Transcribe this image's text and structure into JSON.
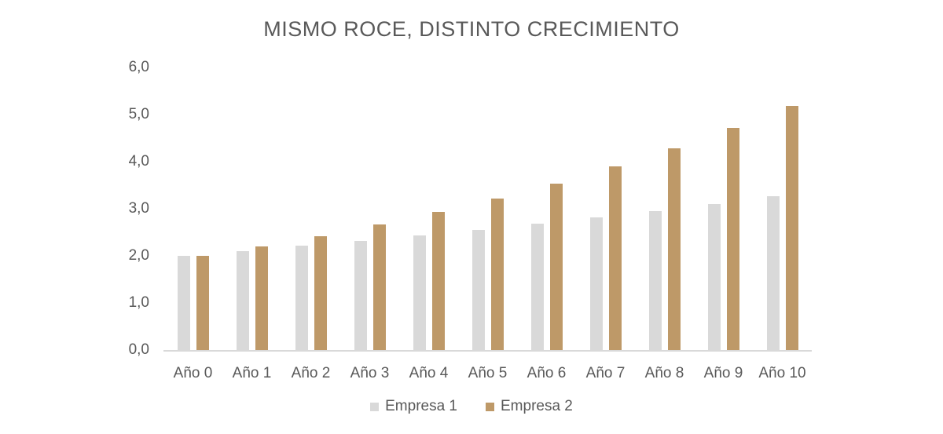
{
  "chart_data": {
    "type": "bar",
    "title": "MISMO ROCE, DISTINTO CRECIMIENTO",
    "categories": [
      "Año 0",
      "Año 1",
      "Año 2",
      "Año 3",
      "Año 4",
      "Año 5",
      "Año 6",
      "Año 7",
      "Año 8",
      "Año 9",
      "Año 10"
    ],
    "series": [
      {
        "name": "Empresa 1",
        "color": "#D9D9D9",
        "values": [
          2.0,
          2.1,
          2.21,
          2.32,
          2.43,
          2.55,
          2.68,
          2.81,
          2.95,
          3.1,
          3.26
        ]
      },
      {
        "name": "Empresa 2",
        "color": "#BE9968",
        "values": [
          2.0,
          2.2,
          2.42,
          2.66,
          2.93,
          3.22,
          3.54,
          3.9,
          4.29,
          4.72,
          5.19
        ]
      }
    ],
    "xlabel": "",
    "ylabel": "",
    "ylim": [
      0,
      6
    ],
    "ytick_labels": [
      "0,0",
      "1,0",
      "2,0",
      "3,0",
      "4,0",
      "5,0",
      "6,0"
    ],
    "grid": false,
    "legend_position": "bottom"
  },
  "colors": {
    "background": "#FFFFFF",
    "title_text": "#595959",
    "axis_text": "#595959",
    "axis_line": "#D9D9D9",
    "empresa_1": "#D9D9D9",
    "empresa_2": "#BE9968"
  }
}
